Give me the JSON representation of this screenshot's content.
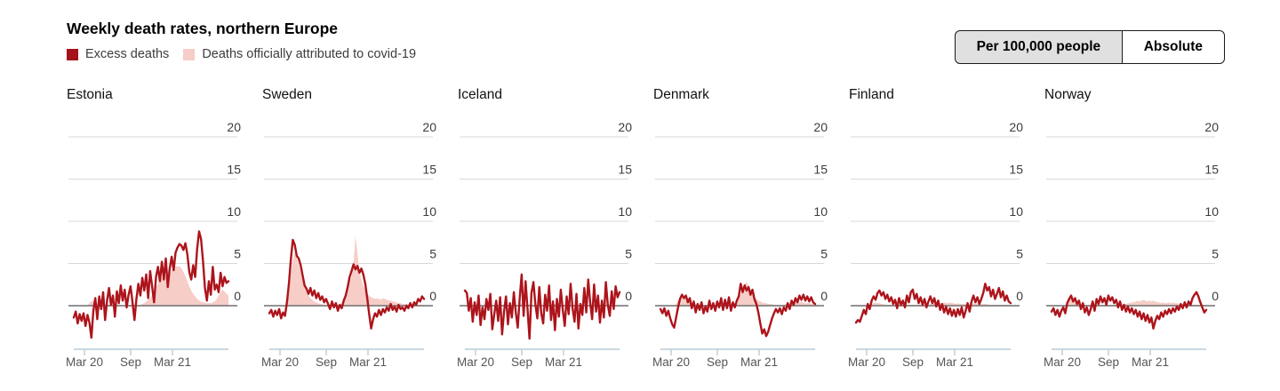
{
  "header": {
    "title": "Weekly death rates, northern Europe",
    "legend": [
      {
        "label": "Excess deaths",
        "color": "#a5121a"
      },
      {
        "label": "Deaths officially attributed to covid-19",
        "color": "#f6cdc7"
      }
    ]
  },
  "toggle": {
    "options": [
      {
        "label": "Per 100,000 people",
        "selected": true
      },
      {
        "label": "Absolute",
        "selected": false
      }
    ]
  },
  "chart_data": {
    "type": "line",
    "title": "Weekly death rates, northern Europe",
    "unit_mode": "Per 100,000 people",
    "yticks": [
      0,
      5,
      10,
      15,
      20
    ],
    "ylim": [
      -4.5,
      21
    ],
    "xticks": [
      "Mar 20",
      "Sep",
      "Mar 21"
    ],
    "x_note": "weekly values, early 2020 to mid 2021",
    "grid": true,
    "series_names": [
      "Excess deaths",
      "Deaths officially attributed to covid-19"
    ],
    "colors": {
      "excess_line": "#ad141b",
      "covid_fill": "#f6cdc7",
      "gridline": "#d8d8d8",
      "zero_line": "#6f6f6f",
      "axis_line": "#b9ccd6"
    },
    "panels": [
      {
        "country": "Estonia",
        "excess": [
          -1.4,
          -0.7,
          -2.1,
          -1.0,
          -1.8,
          -0.9,
          -2.4,
          -1.1,
          -2.0,
          -3.8,
          -0.6,
          0.9,
          -1.6,
          1.1,
          -0.4,
          1.6,
          -1.7,
          0.6,
          2.1,
          0.1,
          1.2,
          -1.3,
          1.7,
          0.3,
          2.4,
          0.6,
          1.9,
          -0.2,
          1.3,
          2.3,
          0.4,
          -1.7,
          0.8,
          2.6,
          1.2,
          3.3,
          1.8,
          3.7,
          0.9,
          4.1,
          2.3,
          0.4,
          3.4,
          4.6,
          2.9,
          5.2,
          3.1,
          5.6,
          2.2,
          4.4,
          5.8,
          4.2,
          6.3,
          6.9,
          7.3,
          7.1,
          6.6,
          7.4,
          6.1,
          4.0,
          3.1,
          4.8,
          3.4,
          6.7,
          8.8,
          7.9,
          5.3,
          2.1,
          0.6,
          2.9,
          1.3,
          4.6,
          1.9,
          2.5,
          1.6,
          3.9,
          2.3,
          3.4,
          2.7,
          2.9
        ],
        "covid": [
          0,
          0,
          0,
          0,
          0,
          0,
          0,
          0,
          0.3,
          0.5,
          0.6,
          0.4,
          0.3,
          0.2,
          0.2,
          0.1,
          0.1,
          0.1,
          0.1,
          0,
          0,
          0,
          0,
          0,
          0,
          0,
          0,
          0.1,
          0.1,
          0.1,
          0.1,
          0.1,
          0.1,
          0.1,
          0.1,
          0.2,
          0.3,
          0.5,
          0.7,
          0.9,
          1.2,
          1.6,
          2.1,
          2.6,
          3.0,
          3.4,
          3.0,
          3.6,
          3.9,
          3.6,
          4.2,
          4.5,
          4.7,
          4.6,
          4.7,
          4.4,
          4.0,
          3.5,
          2.9,
          2.3,
          1.8,
          1.4,
          1.1,
          0.8,
          0.6,
          0.5,
          0.4,
          0.4,
          0.3,
          0.3,
          0.3,
          0.4,
          0.5,
          0.8,
          1.2,
          1.6,
          1.9,
          1.7,
          1.4,
          1.2
        ]
      },
      {
        "country": "Sweden",
        "excess": [
          -0.9,
          -0.5,
          -1.3,
          -0.6,
          -1.1,
          -0.4,
          -1.5,
          -0.8,
          -1.2,
          0.4,
          2.6,
          5.5,
          7.8,
          7.2,
          5.9,
          5.6,
          4.8,
          3.6,
          2.4,
          2.0,
          1.4,
          2.1,
          1.2,
          1.8,
          0.9,
          1.5,
          0.7,
          1.1,
          0.4,
          0.8,
          0.2,
          -0.4,
          0.5,
          -0.2,
          0.3,
          -0.6,
          0.1,
          -0.3,
          0.6,
          1.2,
          2.2,
          3.4,
          4.1,
          4.9,
          4.3,
          4.7,
          3.9,
          4.4,
          3.7,
          2.6,
          0.9,
          -1.0,
          -2.7,
          -1.6,
          -0.9,
          -1.3,
          -0.5,
          -1.1,
          -0.4,
          -0.8,
          -0.2,
          -0.6,
          0.2,
          -0.5,
          -0.1,
          -0.7,
          0.1,
          -0.4,
          -0.2,
          -0.6,
          0.0,
          -0.3,
          0.3,
          -0.2,
          0.4,
          0.1,
          0.8,
          0.5,
          1.1,
          0.8
        ],
        "covid": [
          0,
          0,
          0,
          0,
          0,
          0,
          0,
          0,
          0,
          0.2,
          1.4,
          3.5,
          5.4,
          6.3,
          5.7,
          4.9,
          4.0,
          3.0,
          2.2,
          1.6,
          1.2,
          0.9,
          0.7,
          0.5,
          0.4,
          0.3,
          0.2,
          0.2,
          0.1,
          0.1,
          0.1,
          0.1,
          0.1,
          0.1,
          0.1,
          0.1,
          0.2,
          0.3,
          0.6,
          1.1,
          1.9,
          2.9,
          3.4,
          4.8,
          8.3,
          6.2,
          4.2,
          3.1,
          2.4,
          1.8,
          1.4,
          1.2,
          1.0,
          0.9,
          0.8,
          0.9,
          0.8,
          0.7,
          0.9,
          0.8,
          0.7,
          0.6,
          0.6,
          0.5,
          0.5,
          0.4,
          0.3,
          0.3,
          0.2,
          0.2,
          0.2,
          0.2,
          0.1,
          0.1,
          0.1,
          0.1,
          0.1,
          0.1,
          0.1,
          0.1
        ]
      },
      {
        "country": "Iceland",
        "excess": [
          1.8,
          1.5,
          -0.6,
          0.9,
          -1.9,
          0.4,
          -1.1,
          1.2,
          -2.3,
          -0.2,
          -1.6,
          0.8,
          -0.5,
          1.4,
          -2.8,
          -1.0,
          0.6,
          -1.8,
          1.0,
          -3.4,
          -0.7,
          1.1,
          -2.2,
          0.3,
          -1.4,
          1.6,
          -0.8,
          -2.6,
          0.9,
          3.7,
          -1.2,
          2.9,
          -0.4,
          -3.9,
          1.5,
          2.8,
          0.2,
          -1.5,
          2.2,
          -0.9,
          -2.1,
          1.3,
          -0.6,
          2.4,
          -1.7,
          0.5,
          -2.9,
          0.8,
          -1.3,
          1.9,
          -0.5,
          -2.4,
          1.1,
          -1.0,
          2.6,
          -0.3,
          -1.9,
          1.4,
          -2.7,
          0.2,
          -1.1,
          2.1,
          -0.8,
          3.1,
          0.4,
          -1.6,
          2.5,
          -0.7,
          1.2,
          -2.0,
          0.6,
          -1.4,
          2.8,
          0.1,
          -1.2,
          1.7,
          -0.4,
          2.3,
          1.0,
          1.6
        ],
        "covid": [
          0,
          0,
          0,
          0,
          0,
          0,
          0,
          0,
          0,
          0,
          0,
          0,
          0,
          0,
          0,
          0,
          0,
          0,
          0,
          0,
          0,
          0,
          0,
          0,
          0,
          0,
          0,
          0,
          0.2,
          0.3,
          0.2,
          0.1,
          0.2,
          0.1,
          0.1,
          0,
          0,
          0,
          0,
          0,
          0,
          0,
          0,
          0,
          0.2,
          0.3,
          0.2,
          0.2,
          0.1,
          0,
          0,
          0,
          0,
          0,
          0,
          0,
          0,
          0,
          0,
          0,
          0,
          0,
          0,
          0,
          0,
          0,
          0,
          0,
          0,
          0,
          0,
          0,
          0,
          0,
          0,
          0,
          0,
          0,
          0,
          0
        ]
      },
      {
        "country": "Denmark",
        "excess": [
          -0.4,
          -0.9,
          -0.3,
          -1.2,
          -0.6,
          -1.5,
          -2.2,
          -2.6,
          -1.4,
          -0.2,
          0.8,
          1.3,
          0.9,
          1.2,
          0.4,
          0.9,
          -0.3,
          0.5,
          -0.8,
          0.2,
          -0.5,
          0.4,
          -0.9,
          -0.1,
          -0.7,
          0.6,
          -0.4,
          0.3,
          -0.6,
          0.5,
          -0.2,
          0.9,
          -0.5,
          0.7,
          -0.3,
          1.0,
          -0.6,
          0.4,
          -0.2,
          0.6,
          1.1,
          2.6,
          1.6,
          2.4,
          1.8,
          2.2,
          1.3,
          1.9,
          0.8,
          0.2,
          -0.8,
          -2.1,
          -3.3,
          -2.8,
          -3.6,
          -3.1,
          -2.3,
          -1.5,
          -0.9,
          -0.4,
          -0.8,
          -0.3,
          -1.0,
          -0.2,
          -0.6,
          0.3,
          -0.4,
          0.6,
          0.1,
          0.9,
          0.4,
          1.2,
          0.7,
          1.3,
          0.6,
          1.1,
          0.5,
          1.0,
          0.4,
          0.2
        ],
        "covid": [
          0,
          0,
          0,
          0,
          0,
          0,
          0,
          0,
          0.2,
          0.6,
          1.1,
          1.4,
          1.2,
          0.9,
          0.6,
          0.4,
          0.3,
          0.2,
          0.2,
          0.1,
          0.1,
          0.1,
          0.1,
          0.1,
          0.1,
          0.1,
          0.1,
          0.1,
          0.1,
          0.1,
          0.1,
          0.1,
          0.1,
          0.1,
          0.1,
          0.1,
          0.1,
          0.1,
          0.2,
          0.4,
          0.8,
          1.4,
          2.0,
          2.6,
          2.8,
          2.4,
          1.9,
          1.4,
          1.0,
          0.8,
          0.6,
          0.5,
          0.4,
          0.3,
          0.3,
          0.2,
          0.2,
          0.2,
          0.1,
          0.1,
          0.1,
          0.1,
          0.1,
          0.1,
          0.2,
          0.2,
          0.3,
          0.3,
          0.4,
          0.4,
          0.5,
          0.4,
          0.5,
          0.4,
          0.3,
          0.3,
          0.3,
          0.2,
          0.2,
          0.2
        ]
      },
      {
        "country": "Finland",
        "excess": [
          -2.0,
          -1.7,
          -1.9,
          -1.2,
          -0.5,
          -1.0,
          0.2,
          -0.4,
          0.6,
          1.1,
          0.7,
          1.5,
          1.8,
          1.2,
          1.6,
          0.8,
          1.3,
          0.5,
          1.0,
          0.2,
          0.7,
          -0.3,
          0.9,
          0.1,
          0.6,
          -0.2,
          1.2,
          0.4,
          1.6,
          1.9,
          0.8,
          1.4,
          0.3,
          1.0,
          0.1,
          0.8,
          -0.2,
          0.5,
          1.1,
          0.3,
          0.9,
          -0.1,
          0.6,
          -0.5,
          0.2,
          -0.8,
          -0.1,
          -1.0,
          -0.3,
          -1.2,
          -0.5,
          -1.3,
          -0.4,
          -1.1,
          -0.2,
          -1.4,
          -0.6,
          0.3,
          -0.7,
          0.5,
          1.2,
          0.4,
          1.0,
          0.2,
          0.8,
          1.5,
          2.6,
          1.8,
          2.2,
          1.1,
          1.9,
          0.8,
          1.4,
          2.1,
          1.0,
          1.7,
          0.6,
          1.2,
          0.5,
          0.3
        ],
        "covid": [
          0,
          0,
          0,
          0,
          0,
          0,
          0,
          0,
          0.2,
          0.3,
          0.4,
          0.3,
          0.3,
          0.2,
          0.2,
          0.1,
          0.1,
          0.1,
          0.1,
          0.1,
          0.1,
          0.1,
          0.1,
          0.1,
          0.1,
          0.1,
          0.1,
          0.1,
          0.1,
          0.1,
          0.1,
          0.1,
          0.1,
          0.1,
          0.1,
          0.1,
          0.1,
          0.1,
          0.2,
          0.2,
          0.3,
          0.3,
          0.4,
          0.3,
          0.3,
          0.4,
          0.3,
          0.3,
          0.4,
          0.3,
          0.3,
          0.2,
          0.3,
          0.2,
          0.2,
          0.2,
          0.2,
          0.2,
          0.2,
          0.2,
          0.3,
          0.2,
          0.3,
          0.2,
          0.2,
          0.2,
          0.2,
          0.2,
          0.1,
          0.1,
          0.1,
          0.1,
          0.1,
          0.1,
          0.1,
          0.1,
          0.1,
          0.1,
          0.1,
          0.1
        ]
      },
      {
        "country": "Norway",
        "excess": [
          -0.7,
          -0.3,
          -1.1,
          -0.5,
          -1.3,
          -0.6,
          -0.2,
          -0.9,
          0.3,
          0.8,
          1.2,
          0.5,
          0.9,
          0.2,
          0.6,
          -0.4,
          0.3,
          -0.8,
          -0.2,
          -1.1,
          -0.4,
          0.5,
          -0.6,
          0.8,
          0.2,
          1.1,
          0.4,
          0.9,
          0.1,
          1.2,
          0.6,
          1.0,
          0.3,
          0.7,
          -0.2,
          0.5,
          -0.5,
          0.1,
          -0.7,
          -0.1,
          -0.8,
          -0.3,
          -1.0,
          -0.5,
          -1.3,
          -0.7,
          -1.6,
          -0.9,
          -1.8,
          -1.1,
          -2.0,
          -1.4,
          -2.7,
          -1.8,
          -1.2,
          -1.6,
          -0.8,
          -1.3,
          -0.6,
          -1.0,
          -0.4,
          -0.9,
          -0.3,
          -0.7,
          -0.1,
          -0.5,
          0.2,
          -0.3,
          0.4,
          -0.2,
          0.5,
          0.1,
          0.9,
          1.3,
          1.6,
          1.1,
          0.4,
          -0.2,
          -0.8,
          -0.5
        ],
        "covid": [
          0,
          0,
          0,
          0,
          0,
          0,
          0,
          0,
          0.3,
          0.7,
          0.9,
          0.8,
          0.6,
          0.4,
          0.3,
          0.2,
          0.1,
          0.1,
          0.1,
          0.1,
          0.1,
          0.1,
          0.1,
          0.1,
          0.1,
          0.1,
          0.1,
          0.1,
          0.1,
          0.1,
          0.1,
          0.1,
          0.1,
          0.1,
          0.1,
          0.1,
          0.1,
          0.2,
          0.2,
          0.3,
          0.3,
          0.4,
          0.4,
          0.5,
          0.6,
          0.5,
          0.6,
          0.7,
          0.6,
          0.5,
          0.6,
          0.5,
          0.6,
          0.5,
          0.4,
          0.4,
          0.3,
          0.4,
          0.3,
          0.3,
          0.4,
          0.3,
          0.4,
          0.3,
          0.3,
          0.2,
          0.2,
          0.2,
          0.2,
          0.1,
          0.1,
          0.1,
          0.1,
          0.1,
          0.1,
          0.1,
          0.1,
          0.1,
          0.1,
          0.1
        ]
      }
    ]
  }
}
